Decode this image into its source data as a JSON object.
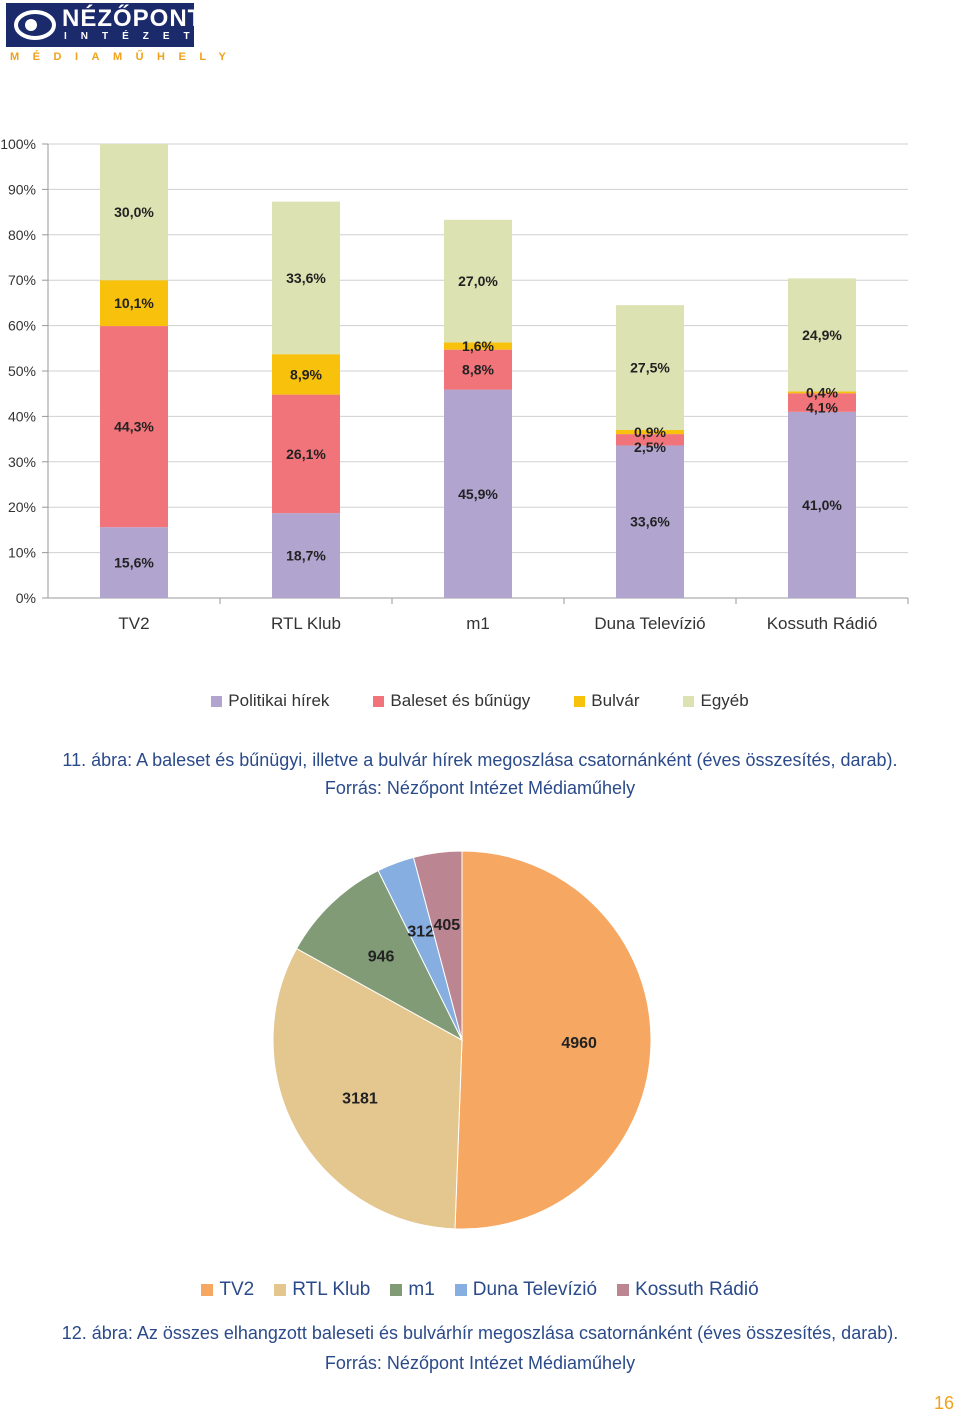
{
  "header": {
    "logo_name": "NÉZŐPONT",
    "logo_sub": "INTÉZET",
    "logo_division": "MÉDIAMŰHELY"
  },
  "colors": {
    "brand_navy": "#1b2a6b",
    "brand_orange": "#f0a21a",
    "caption_blue": "#2a4a8a"
  },
  "figure11": {
    "caption_line1": "11. ábra: A baleset és bűnügyi, illetve a bulvár hírek megoszlása csatornánként (éves összesítés, darab).",
    "caption_line2": "Forrás: Nézőpont Intézet Médiaműhely"
  },
  "figure12": {
    "caption_line1": "12. ábra: Az összes elhangzott baleseti és bulvárhír megoszlása csatornánként (éves összesítés, darab).",
    "caption_line2": "Forrás: Nézőpont Intézet Médiaműhely"
  },
  "page_number": "16",
  "chart_data": [
    {
      "type": "bar",
      "stacked": true,
      "percent": true,
      "categories": [
        "TV2",
        "RTL Klub",
        "m1",
        "Duna Televízió",
        "Kossuth Rádió"
      ],
      "series": [
        {
          "name": "Politikai hírek",
          "color": "#b1a5d0",
          "values": [
            15.6,
            18.7,
            45.9,
            33.6,
            41.0
          ],
          "labels": [
            "15,6%",
            "18,7%",
            "45,9%",
            "33,6%",
            "41,0%"
          ]
        },
        {
          "name": "Baleset és bűnügy",
          "color": "#f0747a",
          "values": [
            44.3,
            26.1,
            8.8,
            2.5,
            4.1
          ],
          "labels": [
            "44,3%",
            "26,1%",
            "8,8%",
            "2,5%",
            "4,1%"
          ]
        },
        {
          "name": "Bulvár",
          "color": "#f8c10b",
          "values": [
            10.1,
            8.9,
            1.6,
            0.9,
            0.4
          ],
          "labels": [
            "10,1%",
            "8,9%",
            "1,6%",
            "0,9%",
            "0,4%"
          ]
        },
        {
          "name": "Egyéb",
          "color": "#dde2b2",
          "values": [
            30.0,
            33.6,
            27.0,
            27.5,
            24.9
          ],
          "labels": [
            "30,0%",
            "33,6%",
            "27,0%",
            "27,5%",
            "24,9%"
          ]
        }
      ],
      "yticks": [
        "0%",
        "10%",
        "20%",
        "30%",
        "40%",
        "50%",
        "60%",
        "70%",
        "80%",
        "90%",
        "100%"
      ],
      "ylim": [
        0,
        100
      ],
      "grid": true,
      "legend_position": "bottom"
    },
    {
      "type": "pie",
      "labels": [
        "TV2",
        "RTL Klub",
        "m1",
        "Duna Televízió",
        "Kossuth Rádió"
      ],
      "values": [
        4960,
        3181,
        946,
        312,
        405
      ],
      "colors": [
        "#f6a862",
        "#e4c68f",
        "#819b77",
        "#86aee0",
        "#bc8592"
      ],
      "legend_position": "bottom"
    }
  ]
}
